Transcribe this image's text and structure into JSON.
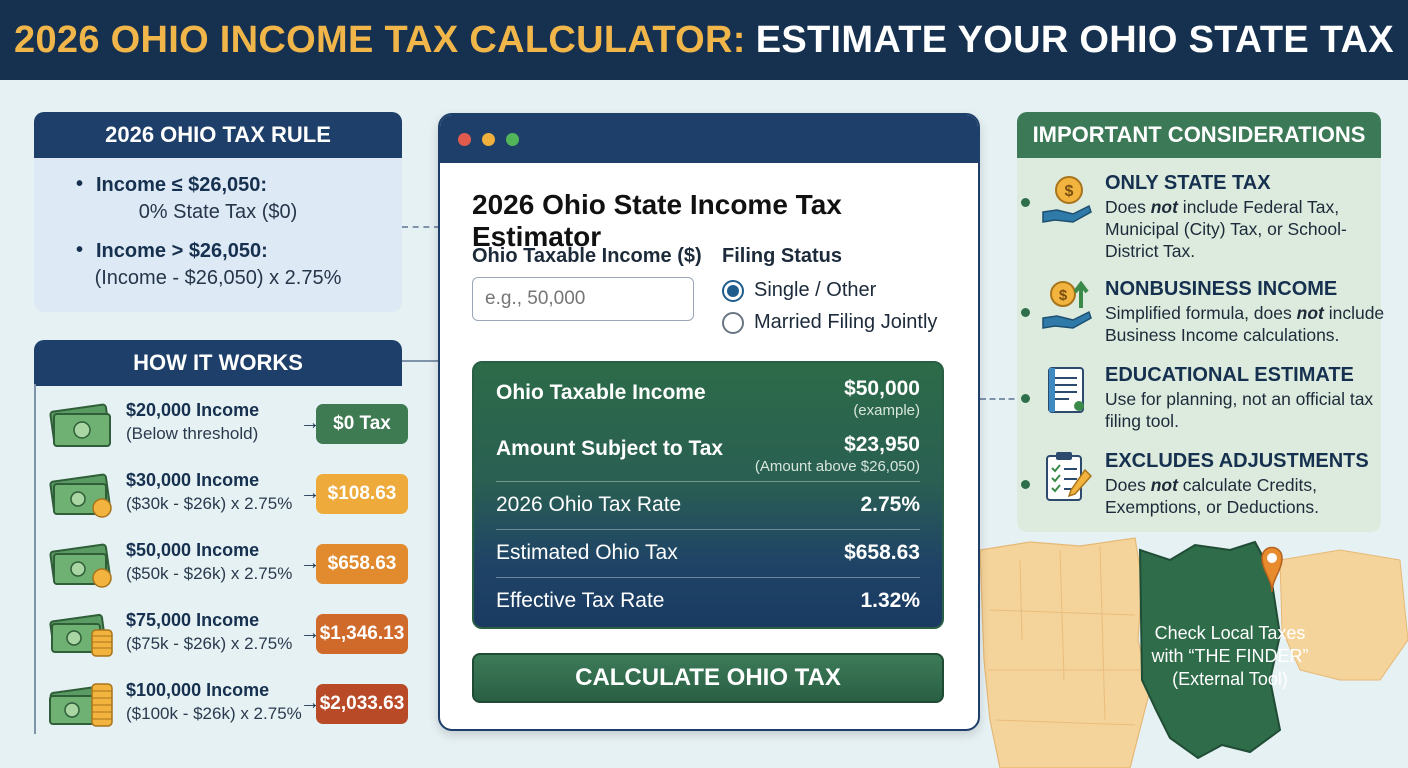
{
  "header": {
    "title_part1": "2026 OHIO INCOME TAX CALCULATOR:",
    "title_part2": "ESTIMATE YOUR OHIO STATE TAX"
  },
  "rule": {
    "title": "2026 OHIO TAX RULE",
    "items": [
      {
        "head": "Income ≤ $26,050:",
        "sub": "0% State Tax ($0)"
      },
      {
        "head": "Income > $26,050:",
        "sub": "(Income - $26,050) x 2.75%"
      }
    ]
  },
  "how": {
    "title": "HOW IT WORKS",
    "rows": [
      {
        "income": "$20,000 Income",
        "calc": "(Below threshold)",
        "tax": "$0 Tax",
        "color": "#3e7a52"
      },
      {
        "income": "$30,000 Income",
        "calc": "($30k - $26k) x 2.75%",
        "tax": "$108.63",
        "color": "#eeaa3a"
      },
      {
        "income": "$50,000 Income",
        "calc": "($50k - $26k) x 2.75%",
        "tax": "$658.63",
        "color": "#e18a2e"
      },
      {
        "income": "$75,000 Income",
        "calc": "($75k - $26k) x 2.75%",
        "tax": "$1,346.13",
        "color": "#d06a2a"
      },
      {
        "income": "$100,000 Income",
        "calc": "($100k - $26k) x 2.75%",
        "tax": "$2,033.63",
        "color": "#b94a28"
      }
    ]
  },
  "calculator": {
    "title": "2026 Ohio State Income Tax Estimator",
    "income_label": "Ohio Taxable Income ($)",
    "income_placeholder": "e.g., 50,000",
    "filing_label": "Filing Status",
    "filing_options": [
      "Single / Other",
      "Married Filing Jointly"
    ],
    "filing_selected": "Single / Other",
    "results": {
      "taxable_income_label": "Ohio Taxable Income",
      "taxable_income_value": "$50,000",
      "taxable_income_note": "(example)",
      "subject_label": "Amount Subject to Tax",
      "subject_value": "$23,950",
      "subject_note": "(Amount above $26,050)",
      "rate_label": "2026 Ohio Tax Rate",
      "rate_value": "2.75%",
      "estimated_label": "Estimated Ohio Tax",
      "estimated_value": "$658.63",
      "effective_label": "Effective Tax Rate",
      "effective_value": "1.32%"
    },
    "button_label": "CALCULATE OHIO TAX"
  },
  "considerations": {
    "title": "IMPORTANT CONSIDERATIONS",
    "items": [
      {
        "head": "ONLY STATE TAX",
        "pre": "Does ",
        "em": "not",
        "post": " include Federal Tax, Municipal (City) Tax, or School-District Tax.",
        "icon": "coin-hand-icon"
      },
      {
        "head": "NONBUSINESS INCOME",
        "pre": "Simplified formula, does ",
        "em": "not",
        "post": " include Business Income calculations.",
        "icon": "coin-growth-icon"
      },
      {
        "head": "EDUCATIONAL ESTIMATE",
        "pre": "Use for planning, not an official tax filing tool.",
        "em": "",
        "post": "",
        "icon": "document-icon"
      },
      {
        "head": "EXCLUDES ADJUSTMENTS",
        "pre": "Does ",
        "em": "not",
        "post": " calculate Credits, Exemptions, or Deductions.",
        "icon": "clipboard-check-icon"
      }
    ]
  },
  "ohio_callout": {
    "line1": "Check Local Taxes",
    "line2": "with “THE FINDER”",
    "line3": "(External Tool)"
  },
  "colors": {
    "navy": "#16304f",
    "gold": "#f1b64a",
    "green": "#3c7a57"
  }
}
